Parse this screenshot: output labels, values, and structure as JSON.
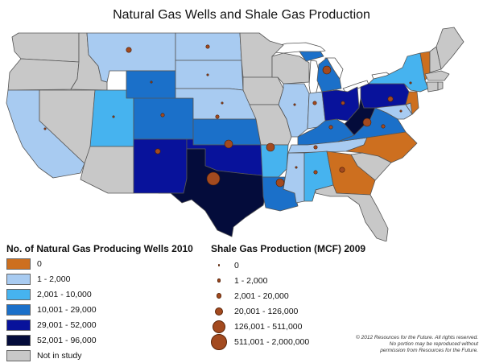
{
  "title": "Natural Gas Wells and Shale Gas Production",
  "colors": {
    "c0": "#cd6f1f",
    "c1": "#a8cbf1",
    "c2": "#46b3ef",
    "c3": "#1b70c9",
    "c4": "#08129b",
    "c5": "#040c3b",
    "ns": "#c8c8c8",
    "water": "#ffffff",
    "dot": "#a34a1f"
  },
  "wells_legend": {
    "title": "No. of Natural Gas Producing Wells 2010",
    "items": [
      {
        "label": "0",
        "color_key": "c0"
      },
      {
        "label": "1 - 2,000",
        "color_key": "c1"
      },
      {
        "label": "2,001 - 10,000",
        "color_key": "c2"
      },
      {
        "label": "10,001 - 29,000",
        "color_key": "c3"
      },
      {
        "label": "29,001 - 52,000",
        "color_key": "c4"
      },
      {
        "label": "52,001 - 96,000",
        "color_key": "c5"
      },
      {
        "label": "Not in study",
        "color_key": "ns"
      }
    ]
  },
  "shale_legend": {
    "title": "Shale Gas Production (MCF) 2009",
    "items": [
      {
        "label": "0",
        "size_class": 0
      },
      {
        "label": "1 - 2,000",
        "size_class": 1
      },
      {
        "label": "2,001 - 20,000",
        "size_class": 2
      },
      {
        "label": "20,001 - 126,000",
        "size_class": 3
      },
      {
        "label": "126,001 - 511,000",
        "size_class": 4
      },
      {
        "label": "511,001 - 2,000,000",
        "size_class": 5
      }
    ]
  },
  "copyright": {
    "line1": "© 2012 Resources for the Future. All rights reserved.",
    "line2": "No portion may be reproduced without",
    "line3": "permission from Resources for the Future."
  },
  "states": [
    {
      "name": "WA",
      "color_key": "ns"
    },
    {
      "name": "OR",
      "color_key": "ns"
    },
    {
      "name": "CA",
      "color_key": "c1",
      "shale": 0
    },
    {
      "name": "NV",
      "color_key": "ns"
    },
    {
      "name": "ID",
      "color_key": "ns"
    },
    {
      "name": "MT",
      "color_key": "c1",
      "shale": 2
    },
    {
      "name": "WY",
      "color_key": "c3",
      "shale": 0
    },
    {
      "name": "UT",
      "color_key": "c2",
      "shale": 0
    },
    {
      "name": "AZ",
      "color_key": "ns"
    },
    {
      "name": "CO",
      "color_key": "c3",
      "shale": 1
    },
    {
      "name": "NM",
      "color_key": "c4",
      "shale": 2
    },
    {
      "name": "ND",
      "color_key": "c1",
      "shale": 1
    },
    {
      "name": "SD",
      "color_key": "c1",
      "shale": 0
    },
    {
      "name": "NE",
      "color_key": "c1",
      "shale": 0
    },
    {
      "name": "KS",
      "color_key": "c3",
      "shale": 1
    },
    {
      "name": "OK",
      "color_key": "c4",
      "shale": 3
    },
    {
      "name": "TX",
      "color_key": "c5",
      "shale": 4
    },
    {
      "name": "MN",
      "color_key": "ns"
    },
    {
      "name": "IA",
      "color_key": "ns"
    },
    {
      "name": "MO",
      "color_key": "ns"
    },
    {
      "name": "AR",
      "color_key": "c2",
      "shale": 3
    },
    {
      "name": "LA",
      "color_key": "c3",
      "shale": 3
    },
    {
      "name": "WI",
      "color_key": "ns"
    },
    {
      "name": "IL",
      "color_key": "c1",
      "shale": 0
    },
    {
      "name": "MS",
      "color_key": "c1",
      "shale": 0
    },
    {
      "name": "MI",
      "color_key": "c3",
      "shale": 3
    },
    {
      "name": "IN",
      "color_key": "c1",
      "shale": 1
    },
    {
      "name": "KY",
      "color_key": "c3",
      "shale": 1
    },
    {
      "name": "TN",
      "color_key": "c1",
      "shale": 1
    },
    {
      "name": "AL",
      "color_key": "c2",
      "shale": 1
    },
    {
      "name": "OH",
      "color_key": "c4",
      "shale": 1
    },
    {
      "name": "WV",
      "color_key": "c5",
      "shale": 3
    },
    {
      "name": "PA",
      "color_key": "c4",
      "shale": 2
    },
    {
      "name": "NY",
      "color_key": "c2",
      "shale": 0
    },
    {
      "name": "VA",
      "color_key": "c3",
      "shale": 1
    },
    {
      "name": "NC",
      "color_key": "c0"
    },
    {
      "name": "SC",
      "color_key": "ns"
    },
    {
      "name": "GA",
      "color_key": "c0",
      "shale": 2
    },
    {
      "name": "FL",
      "color_key": "ns"
    },
    {
      "name": "MD",
      "color_key": "c1",
      "shale": 0
    },
    {
      "name": "NJ",
      "color_key": "c0"
    },
    {
      "name": "DE",
      "color_key": "c1"
    },
    {
      "name": "VT",
      "color_key": "c0"
    },
    {
      "name": "NH",
      "color_key": "ns"
    },
    {
      "name": "ME",
      "color_key": "ns"
    },
    {
      "name": "MA",
      "color_key": "ns"
    },
    {
      "name": "CT",
      "color_key": "ns"
    },
    {
      "name": "RI",
      "color_key": "ns"
    }
  ]
}
